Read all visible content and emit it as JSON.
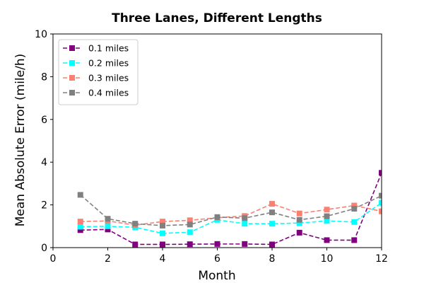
{
  "chart_data": {
    "type": "line",
    "title": "Three Lanes, Different Lengths",
    "xlabel": "Month",
    "ylabel": "Mean Absolute Error (mile/h)",
    "xlim": [
      0,
      12
    ],
    "ylim": [
      0,
      10
    ],
    "xticks": [
      0,
      2,
      4,
      6,
      8,
      10,
      12
    ],
    "yticks": [
      0,
      2,
      4,
      6,
      8,
      10
    ],
    "grid": false,
    "legend_position": "top-left",
    "x": [
      1,
      2,
      3,
      4,
      5,
      6,
      7,
      8,
      9,
      10,
      11,
      12
    ],
    "series": [
      {
        "name": "0.1 miles",
        "color": "#800080",
        "marker": "square",
        "linestyle": "dashed",
        "values": [
          0.82,
          0.85,
          0.15,
          0.15,
          0.16,
          0.17,
          0.17,
          0.15,
          0.7,
          0.35,
          0.35,
          3.5
        ]
      },
      {
        "name": "0.2 miles",
        "color": "#00ffff",
        "marker": "square",
        "linestyle": "dashed",
        "values": [
          0.98,
          1.0,
          0.95,
          0.67,
          0.72,
          1.3,
          1.12,
          1.12,
          1.15,
          1.25,
          1.2,
          2.1
        ]
      },
      {
        "name": "0.3 miles",
        "color": "#fa8072",
        "marker": "square",
        "linestyle": "dashed",
        "values": [
          1.22,
          1.25,
          1.05,
          1.22,
          1.28,
          1.4,
          1.48,
          2.05,
          1.6,
          1.78,
          1.97,
          1.7
        ]
      },
      {
        "name": "0.4 miles",
        "color": "#808080",
        "marker": "square",
        "linestyle": "dashed",
        "values": [
          2.47,
          1.35,
          1.12,
          1.03,
          1.08,
          1.43,
          1.38,
          1.65,
          1.3,
          1.47,
          1.82,
          2.43
        ]
      }
    ]
  }
}
